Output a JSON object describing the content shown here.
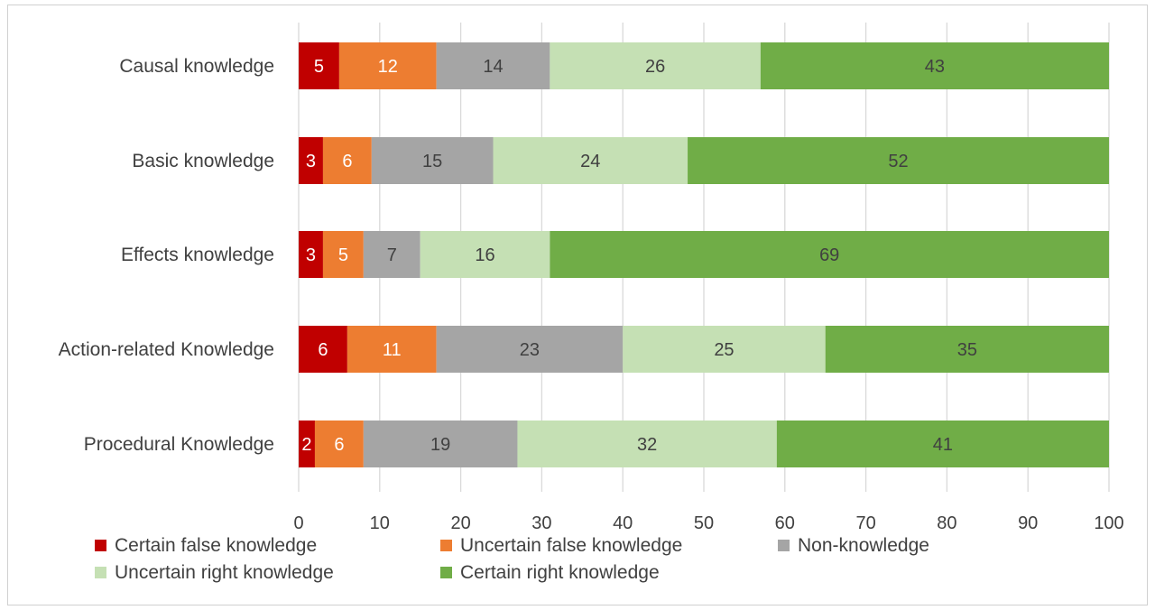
{
  "chart_data": {
    "type": "bar",
    "orientation": "horizontal",
    "stacked": true,
    "categories": [
      "Causal knowledge",
      "Basic knowledge",
      "Effects knowledge",
      "Action-related Knowledge",
      "Procedural Knowledge"
    ],
    "series": [
      {
        "name": "Certain false knowledge",
        "color": "#c00000",
        "label_color": "#ffffff",
        "values": [
          5,
          3,
          3,
          6,
          2
        ]
      },
      {
        "name": "Uncertain false knowledge",
        "color": "#ed7d31",
        "label_color": "#ffffff",
        "values": [
          12,
          6,
          5,
          11,
          6
        ]
      },
      {
        "name": "Non-knowledge",
        "color": "#a5a5a5",
        "label_color": "#404040",
        "values": [
          14,
          15,
          7,
          23,
          19
        ]
      },
      {
        "name": "Uncertain right knowledge",
        "color": "#c5e0b4",
        "label_color": "#404040",
        "values": [
          26,
          24,
          16,
          25,
          32
        ]
      },
      {
        "name": "Certain right knowledge",
        "color": "#70ad47",
        "label_color": "#404040",
        "values": [
          43,
          52,
          69,
          35,
          41
        ]
      }
    ],
    "xlim": [
      0,
      100
    ],
    "x_ticks": [
      0,
      10,
      20,
      30,
      40,
      50,
      60,
      70,
      80,
      90,
      100
    ],
    "title": "",
    "xlabel": "",
    "ylabel": "",
    "grid": "vertical",
    "legend_position": "bottom",
    "grid_color": "#d9d9d9",
    "text_color": "#404040"
  }
}
